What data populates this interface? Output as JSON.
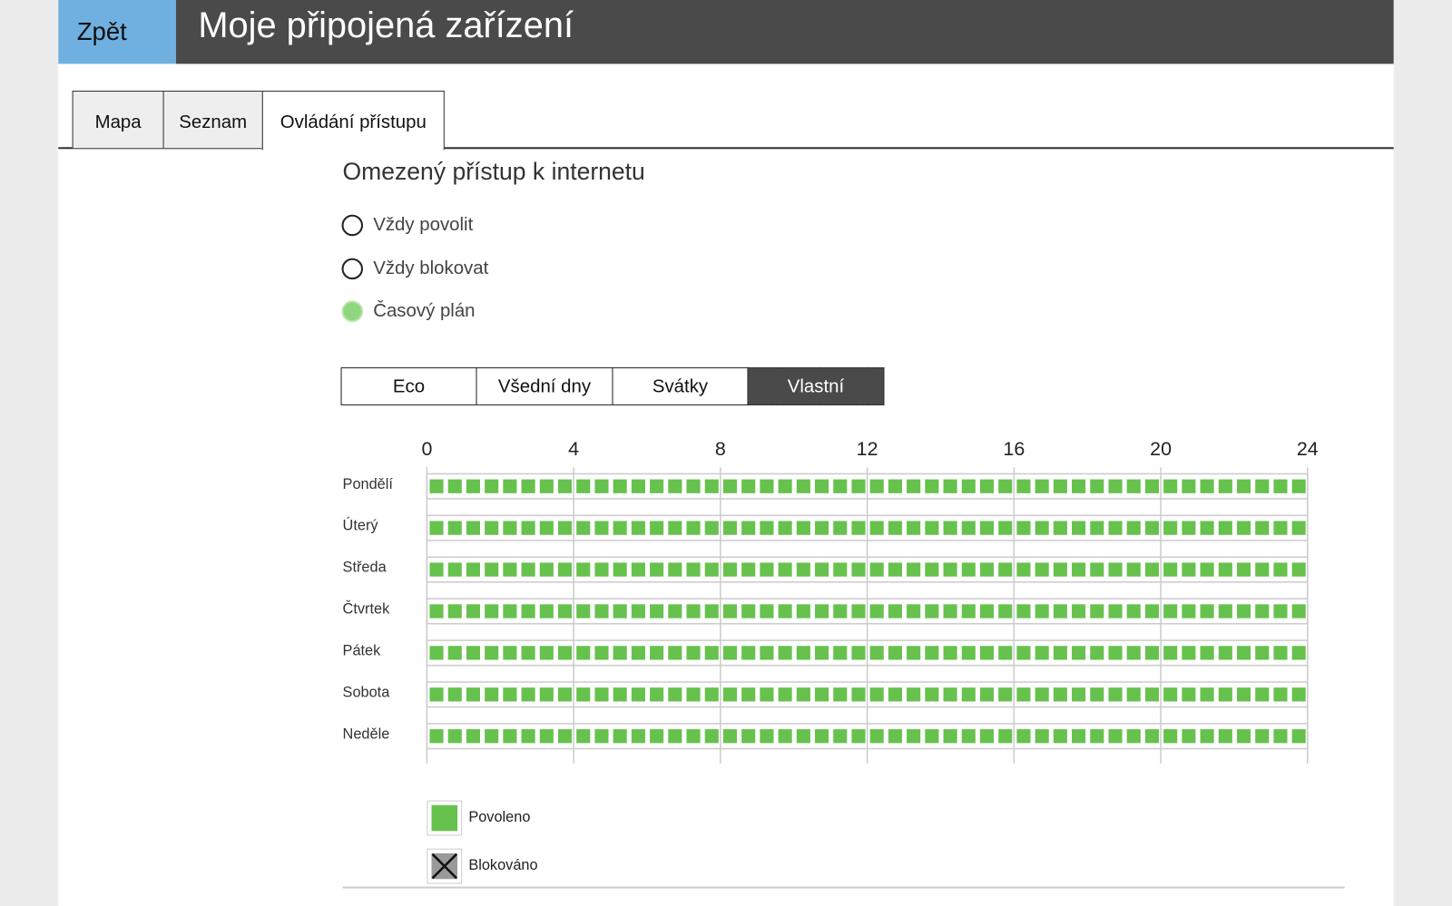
{
  "header": {
    "back_label": "Zpět",
    "title": "Moje připojená zařízení"
  },
  "tabs": [
    {
      "label": "Mapa",
      "active": false
    },
    {
      "label": "Seznam",
      "active": false
    },
    {
      "label": "Ovládání přístupu",
      "active": true
    }
  ],
  "section_title": "Omezený přístup k internetu",
  "radios": [
    {
      "label": "Vždy povolit",
      "selected": false
    },
    {
      "label": "Vždy blokovat",
      "selected": false
    },
    {
      "label": "Časový plán",
      "selected": true
    }
  ],
  "profiles": [
    {
      "label": "Eco",
      "active": false
    },
    {
      "label": "Všední dny",
      "active": false
    },
    {
      "label": "Svátky",
      "active": false
    },
    {
      "label": "Vlastní",
      "active": true
    }
  ],
  "schedule": {
    "hour_labels": [
      "0",
      "4",
      "8",
      "12",
      "16",
      "20",
      "24"
    ],
    "slots_per_hour": 2,
    "days": [
      {
        "name": "Pondělí",
        "slots": "111111111111111111111111111111111111111111111111"
      },
      {
        "name": "Úterý",
        "slots": "111111111111111111111111111111111111111111111111"
      },
      {
        "name": "Středa",
        "slots": "111111111111111111111111111111111111111111111111"
      },
      {
        "name": "Čtvrtek",
        "slots": "111111111111111111111111111111111111111111111111"
      },
      {
        "name": "Pátek",
        "slots": "111111111111111111111111111111111111111111111111"
      },
      {
        "name": "Sobota",
        "slots": "111111111111111111111111111111111111111111111111"
      },
      {
        "name": "Neděle",
        "slots": "111111111111111111111111111111111111111111111111"
      }
    ]
  },
  "legend": {
    "allowed": "Povoleno",
    "blocked": "Blokováno"
  },
  "colors": {
    "allowed": "#66c24d",
    "blocked": "#999999",
    "header": "#4a4a4a",
    "back": "#6fb0e0"
  }
}
